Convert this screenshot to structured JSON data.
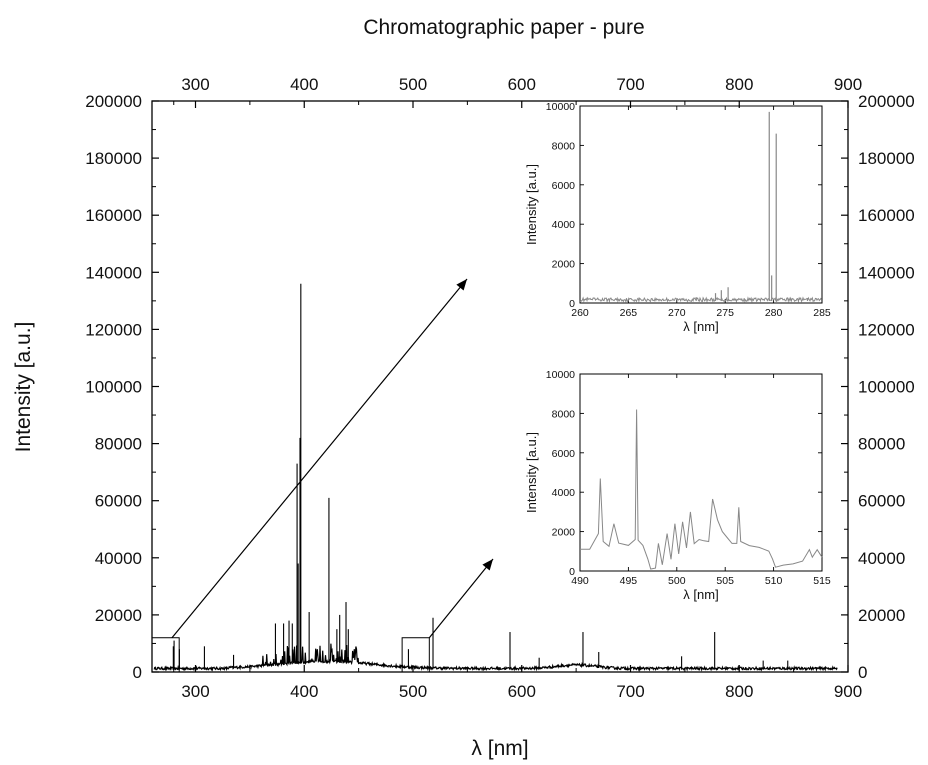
{
  "chart_data": [
    {
      "type": "line",
      "title": "Chromatographic paper - pure",
      "xlabel": "λ [nm]",
      "ylabel": "Intensity [a.u.]",
      "xlim": [
        260,
        900
      ],
      "ylim": [
        0,
        200000
      ],
      "x_ticks": [
        300,
        400,
        500,
        600,
        700,
        800,
        900
      ],
      "y_ticks": [
        0,
        20000,
        40000,
        60000,
        80000,
        100000,
        120000,
        140000,
        160000,
        180000,
        200000
      ],
      "grid": false,
      "line_color": "#000000",
      "peaks": [
        {
          "x": 279.6,
          "y": 9000
        },
        {
          "x": 280.3,
          "y": 11000
        },
        {
          "x": 285.2,
          "y": 8000
        },
        {
          "x": 308.2,
          "y": 9000
        },
        {
          "x": 335,
          "y": 6000
        },
        {
          "x": 373.5,
          "y": 17000
        },
        {
          "x": 381,
          "y": 17000
        },
        {
          "x": 386,
          "y": 18000
        },
        {
          "x": 389,
          "y": 17000
        },
        {
          "x": 393.4,
          "y": 73000
        },
        {
          "x": 394.4,
          "y": 38000
        },
        {
          "x": 396.1,
          "y": 82000
        },
        {
          "x": 396.85,
          "y": 136000
        },
        {
          "x": 404.5,
          "y": 21000
        },
        {
          "x": 422.7,
          "y": 61000
        },
        {
          "x": 430,
          "y": 15000
        },
        {
          "x": 432.6,
          "y": 20000
        },
        {
          "x": 438.4,
          "y": 24500
        },
        {
          "x": 440.5,
          "y": 15000
        },
        {
          "x": 495.8,
          "y": 8000
        },
        {
          "x": 518.4,
          "y": 19000
        },
        {
          "x": 589.2,
          "y": 14000
        },
        {
          "x": 616,
          "y": 5000
        },
        {
          "x": 656.3,
          "y": 14000
        },
        {
          "x": 670.8,
          "y": 7000
        },
        {
          "x": 747,
          "y": 5500
        },
        {
          "x": 777.4,
          "y": 14000
        },
        {
          "x": 822,
          "y": 4000
        },
        {
          "x": 844.6,
          "y": 4000
        }
      ],
      "zoom_boxes": [
        {
          "x_range": [
            260,
            285
          ],
          "y_range": [
            0,
            12000
          ]
        },
        {
          "x_range": [
            490,
            515
          ],
          "y_range": [
            0,
            12000
          ]
        }
      ]
    },
    {
      "type": "line",
      "xlabel": "λ [nm]",
      "ylabel": "Intensity [a.u.]",
      "xlim": [
        260,
        285
      ],
      "ylim": [
        0,
        10000
      ],
      "x_ticks": [
        260,
        265,
        270,
        275,
        280,
        285
      ],
      "y_ticks": [
        0,
        2000,
        4000,
        6000,
        8000,
        10000
      ],
      "line_color": "#888888",
      "peaks": [
        {
          "x": 272,
          "y": 300
        },
        {
          "x": 274,
          "y": 500
        },
        {
          "x": 274.6,
          "y": 650
        },
        {
          "x": 275.3,
          "y": 800
        },
        {
          "x": 279.55,
          "y": 9700
        },
        {
          "x": 279.8,
          "y": 1400
        },
        {
          "x": 280.27,
          "y": 8600
        },
        {
          "x": 283.5,
          "y": 250
        }
      ]
    },
    {
      "type": "line",
      "xlabel": "λ [nm]",
      "ylabel": "Intensity [a.u.]",
      "xlim": [
        490,
        515
      ],
      "ylim": [
        0,
        10000
      ],
      "x_ticks": [
        490,
        495,
        500,
        505,
        510,
        515
      ],
      "y_ticks": [
        0,
        2000,
        4000,
        6000,
        8000,
        10000
      ],
      "line_color": "#888888",
      "points": [
        [
          490,
          1100
        ],
        [
          491,
          1200
        ],
        [
          491.9,
          1900
        ],
        [
          492.1,
          4600
        ],
        [
          492.4,
          1500
        ],
        [
          493,
          1300
        ],
        [
          493.5,
          2400
        ],
        [
          494,
          1400
        ],
        [
          495,
          1300
        ],
        [
          495.7,
          1500
        ],
        [
          495.85,
          8200
        ],
        [
          496,
          1500
        ],
        [
          496.5,
          1300
        ],
        [
          497,
          600
        ],
        [
          497.3,
          100
        ],
        [
          497.8,
          100
        ],
        [
          498.1,
          1400
        ],
        [
          498.5,
          300
        ],
        [
          499,
          1900
        ],
        [
          499.4,
          500
        ],
        [
          499.8,
          2400
        ],
        [
          500.2,
          800
        ],
        [
          500.6,
          2500
        ],
        [
          501,
          1200
        ],
        [
          501.4,
          3000
        ],
        [
          501.8,
          1300
        ],
        [
          502.3,
          1600
        ],
        [
          502.8,
          1500
        ],
        [
          503.3,
          1500
        ],
        [
          503.7,
          3600
        ],
        [
          504.2,
          2600
        ],
        [
          504.7,
          1900
        ],
        [
          505.2,
          1700
        ],
        [
          505.7,
          1500
        ],
        [
          506.2,
          1400
        ],
        [
          506.4,
          3200
        ],
        [
          506.6,
          1500
        ],
        [
          507.5,
          1300
        ],
        [
          508.5,
          1200
        ],
        [
          509.5,
          1000
        ],
        [
          509.9,
          600
        ],
        [
          510.2,
          100
        ],
        [
          511,
          300
        ],
        [
          512,
          400
        ],
        [
          513,
          500
        ],
        [
          513.7,
          1100
        ],
        [
          514,
          700
        ],
        [
          514.5,
          1000
        ],
        [
          515,
          700
        ]
      ]
    }
  ]
}
